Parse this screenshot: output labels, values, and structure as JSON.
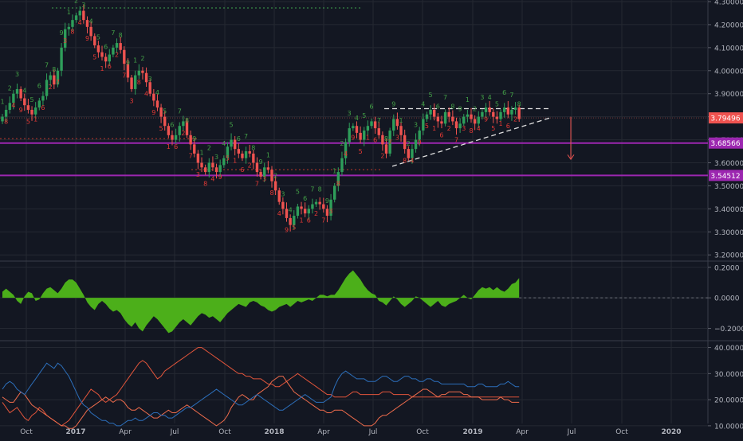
{
  "colors": {
    "background": "#131722",
    "grid": "#242832",
    "axis_text": "#b2b5be",
    "up": "#26a69a",
    "up_candle": "#2e9e5a",
    "down_candle": "#ef5350",
    "support": "#9c27b0",
    "price_tag": "#ef5350",
    "histogram": "#4caf1a",
    "td_up": "#43a047",
    "td_down": "#e53935",
    "adx": "#e2553b",
    "di_plus": "#ef6c4c",
    "di_minus": "#2c6fbb"
  },
  "x_axis": {
    "labels": [
      "Oct",
      "2017",
      "Apr",
      "Jul",
      "Oct",
      "2018",
      "Apr",
      "Jul",
      "Oct",
      "2019",
      "Apr",
      "Jul",
      "Oct",
      "2020"
    ]
  },
  "price_tags": [
    {
      "label": "3.79496",
      "value": 3.79496,
      "kind": "last"
    },
    {
      "label": "3.68566",
      "value": 3.68566,
      "kind": "level"
    },
    {
      "label": "3.54512",
      "value": 3.54512,
      "kind": "level"
    }
  ],
  "chart_data": [
    {
      "type": "candlestick",
      "name": "price",
      "y_ticks": [
        "4.30000",
        "4.20000",
        "4.10000",
        "4.00000",
        "3.90000",
        "3.80000",
        "3.70000",
        "3.60000",
        "3.50000",
        "3.40000",
        "3.30000",
        "3.20000"
      ],
      "ylim": [
        3.18,
        4.3
      ],
      "n_bars": 141,
      "bar_index_of_2017": 13,
      "closes": [
        3.8,
        3.83,
        3.86,
        3.9,
        3.92,
        3.88,
        3.85,
        3.83,
        3.81,
        3.84,
        3.87,
        3.89,
        3.96,
        3.98,
        3.94,
        4.0,
        4.1,
        4.18,
        4.19,
        4.22,
        4.24,
        4.26,
        4.22,
        4.19,
        4.15,
        4.11,
        4.08,
        4.06,
        4.04,
        4.07,
        4.1,
        4.12,
        4.09,
        4.03,
        3.97,
        3.92,
        3.98,
        4.0,
        3.99,
        3.95,
        3.9,
        3.87,
        3.84,
        3.8,
        3.76,
        3.72,
        3.7,
        3.72,
        3.76,
        3.78,
        3.72,
        3.68,
        3.64,
        3.6,
        3.58,
        3.56,
        3.6,
        3.58,
        3.56,
        3.59,
        3.62,
        3.67,
        3.7,
        3.66,
        3.64,
        3.62,
        3.65,
        3.64,
        3.6,
        3.56,
        3.54,
        3.58,
        3.57,
        3.52,
        3.48,
        3.43,
        3.4,
        3.36,
        3.33,
        3.37,
        3.41,
        3.4,
        3.38,
        3.4,
        3.42,
        3.43,
        3.42,
        3.4,
        3.37,
        3.44,
        3.5,
        3.56,
        3.62,
        3.69,
        3.75,
        3.76,
        3.73,
        3.7,
        3.74,
        3.76,
        3.78,
        3.75,
        3.72,
        3.68,
        3.64,
        3.74,
        3.79,
        3.76,
        3.72,
        3.66,
        3.62,
        3.66,
        3.7,
        3.74,
        3.79,
        3.81,
        3.83,
        3.8,
        3.78,
        3.77,
        3.82,
        3.8,
        3.78,
        3.75,
        3.77,
        3.8,
        3.81,
        3.79,
        3.77,
        3.8,
        3.82,
        3.84,
        3.82,
        3.8,
        3.79,
        3.82,
        3.84,
        3.81,
        3.83,
        3.84,
        3.79
      ]
    },
    {
      "type": "area",
      "name": "oscillator",
      "y_ticks": [
        "0.2000",
        "0.0000",
        "−0.2000"
      ],
      "ylim": [
        -0.27,
        0.23
      ],
      "values": [
        0.04,
        0.06,
        0.04,
        0.02,
        -0.02,
        -0.04,
        0.01,
        0.04,
        0.03,
        -0.02,
        -0.01,
        0.03,
        0.06,
        0.07,
        0.05,
        0.03,
        0.06,
        0.1,
        0.12,
        0.12,
        0.1,
        0.06,
        0.02,
        -0.03,
        -0.06,
        -0.08,
        -0.04,
        -0.02,
        -0.04,
        -0.07,
        -0.09,
        -0.08,
        -0.1,
        -0.14,
        -0.17,
        -0.19,
        -0.16,
        -0.2,
        -0.22,
        -0.18,
        -0.15,
        -0.12,
        -0.14,
        -0.17,
        -0.2,
        -0.23,
        -0.22,
        -0.19,
        -0.16,
        -0.14,
        -0.16,
        -0.18,
        -0.15,
        -0.12,
        -0.1,
        -0.11,
        -0.13,
        -0.12,
        -0.14,
        -0.16,
        -0.13,
        -0.1,
        -0.08,
        -0.06,
        -0.04,
        -0.05,
        -0.06,
        -0.03,
        -0.02,
        -0.03,
        -0.05,
        -0.06,
        -0.08,
        -0.09,
        -0.08,
        -0.06,
        -0.05,
        -0.04,
        -0.06,
        -0.04,
        -0.02,
        -0.03,
        -0.02,
        -0.01,
        -0.02,
        0.0,
        0.02,
        0.02,
        0.01,
        0.02,
        0.02,
        0.05,
        0.09,
        0.13,
        0.16,
        0.18,
        0.15,
        0.12,
        0.08,
        0.05,
        0.03,
        0.02,
        -0.02,
        -0.03,
        -0.05,
        -0.02,
        0.01,
        -0.01,
        -0.04,
        -0.06,
        -0.04,
        -0.02,
        0.01,
        0.0,
        -0.02,
        -0.04,
        -0.06,
        -0.04,
        -0.02,
        -0.05,
        -0.06,
        -0.04,
        -0.03,
        -0.02,
        0.0,
        0.02,
        0.0,
        -0.01,
        0.02,
        0.05,
        0.07,
        0.06,
        0.07,
        0.05,
        0.07,
        0.05,
        0.04,
        0.06,
        0.09,
        0.1,
        0.13
      ]
    },
    {
      "type": "line",
      "name": "directional",
      "y_ticks": [
        "40.0000",
        "30.0000",
        "20.0000",
        "10.0000"
      ],
      "ylim": [
        6,
        42
      ],
      "series": [
        {
          "values": [
            19,
            17,
            15,
            16,
            17,
            15,
            13,
            12,
            14,
            15,
            17,
            16,
            14,
            13,
            12,
            11,
            10,
            11,
            12,
            14,
            16,
            18,
            20,
            22,
            24,
            23,
            22,
            20,
            19,
            20,
            21,
            22,
            24,
            26,
            28,
            30,
            32,
            34,
            35,
            34,
            32,
            30,
            28,
            29,
            31,
            32,
            33,
            34,
            35,
            36,
            37,
            38,
            39,
            40,
            40,
            39,
            38,
            37,
            36,
            35,
            34,
            33,
            32,
            31,
            30,
            30,
            29,
            29,
            28,
            28,
            28,
            27,
            26,
            26,
            25,
            25,
            26,
            27,
            28,
            29,
            30,
            29,
            28,
            27,
            26,
            25,
            24,
            23,
            22,
            22,
            21,
            21,
            21,
            21,
            22,
            23,
            23,
            22,
            22,
            22,
            22,
            22,
            22,
            23,
            23,
            23,
            22,
            22,
            22,
            22,
            22,
            21,
            21,
            21,
            21,
            21,
            21,
            21,
            21,
            21,
            21,
            21,
            21,
            21,
            21,
            21,
            21,
            21,
            21,
            21,
            21,
            21,
            21,
            21,
            21,
            21,
            21,
            21,
            21,
            21,
            21
          ]
        },
        {
          "values": [
            21,
            20,
            19,
            19,
            21,
            23,
            22,
            20,
            18,
            17,
            16,
            15,
            14,
            13,
            12,
            11,
            10,
            10,
            9,
            9,
            10,
            12,
            14,
            16,
            17,
            18,
            19,
            20,
            21,
            20,
            19,
            20,
            20,
            19,
            17,
            16,
            16,
            17,
            16,
            15,
            14,
            13,
            13,
            14,
            15,
            16,
            15,
            15,
            16,
            17,
            18,
            17,
            16,
            15,
            14,
            13,
            12,
            11,
            10,
            11,
            12,
            14,
            17,
            19,
            21,
            22,
            21,
            20,
            20,
            22,
            23,
            24,
            25,
            27,
            28,
            29,
            29,
            27,
            25,
            23,
            22,
            21,
            20,
            19,
            18,
            17,
            16,
            16,
            15,
            15,
            16,
            16,
            16,
            15,
            14,
            13,
            12,
            11,
            10,
            10,
            10,
            11,
            13,
            14,
            14,
            15,
            16,
            17,
            18,
            19,
            20,
            21,
            22,
            23,
            24,
            24,
            23,
            22,
            21,
            22,
            22,
            23,
            23,
            23,
            23,
            22,
            22,
            21,
            21,
            21,
            20,
            20,
            20,
            20,
            20,
            21,
            20,
            20,
            19,
            19,
            19
          ]
        },
        {
          "values": [
            24,
            26,
            27,
            26,
            24,
            23,
            22,
            24,
            26,
            28,
            30,
            32,
            34,
            33,
            32,
            34,
            33,
            31,
            29,
            26,
            23,
            20,
            18,
            17,
            15,
            14,
            13,
            12,
            12,
            11,
            11,
            10,
            10,
            11,
            12,
            12,
            13,
            12,
            12,
            13,
            14,
            15,
            15,
            14,
            14,
            13,
            13,
            14,
            15,
            16,
            17,
            17,
            18,
            19,
            20,
            21,
            22,
            23,
            24,
            23,
            22,
            21,
            20,
            19,
            18,
            18,
            19,
            20,
            21,
            22,
            21,
            20,
            19,
            18,
            17,
            16,
            16,
            17,
            18,
            19,
            20,
            21,
            22,
            21,
            20,
            19,
            19,
            19,
            20,
            21,
            25,
            28,
            30,
            31,
            30,
            29,
            28,
            28,
            28,
            27,
            27,
            27,
            28,
            29,
            29,
            28,
            27,
            27,
            28,
            29,
            29,
            28,
            28,
            27,
            27,
            28,
            28,
            27,
            27,
            26,
            26,
            26,
            26,
            26,
            26,
            26,
            25,
            25,
            25,
            26,
            26,
            25,
            25,
            25,
            25,
            26,
            26,
            27,
            26,
            25,
            25
          ]
        }
      ]
    }
  ]
}
